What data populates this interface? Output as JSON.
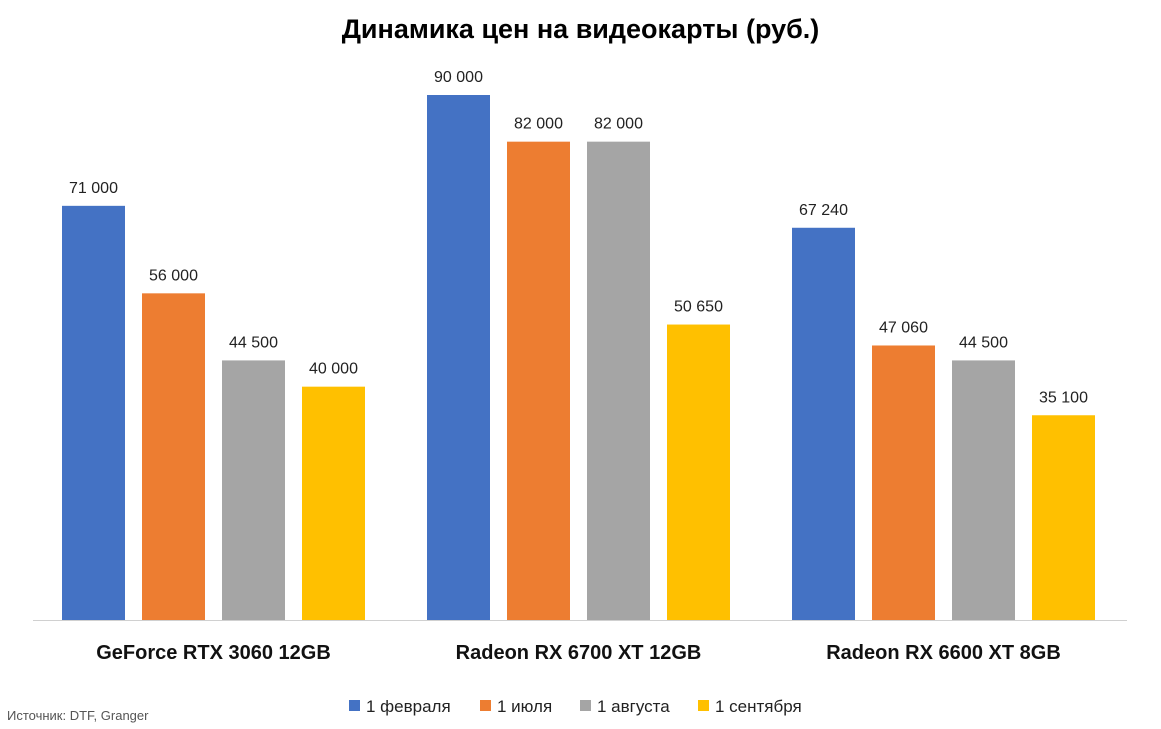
{
  "chart_data": {
    "type": "bar",
    "title": "Динамика цен на видеокарты (руб.)",
    "categories": [
      "GeForce RTX 3060 12GB",
      "Radeon RX 6700 XT 12GB",
      "Radeon RX 6600 XT 8GB"
    ],
    "series": [
      {
        "name": "1 февраля",
        "color": "#4472C4",
        "values": [
          71000,
          90000,
          67240
        ],
        "labels": [
          "71 000",
          "90 000",
          "67 240"
        ]
      },
      {
        "name": "1 июля",
        "color": "#ED7D31",
        "values": [
          56000,
          82000,
          47060
        ],
        "labels": [
          "56 000",
          "82 000",
          "47 060"
        ]
      },
      {
        "name": "1 августа",
        "color": "#A5A5A5",
        "values": [
          44500,
          82000,
          44500
        ],
        "labels": [
          "44 500",
          "82 000",
          "44 500"
        ]
      },
      {
        "name": "1 сентября",
        "color": "#FFC000",
        "values": [
          40000,
          50650,
          35100
        ],
        "labels": [
          "40 000",
          "50 650",
          "35 100"
        ]
      }
    ],
    "xlabel": "",
    "ylabel": "",
    "ylim": [
      0,
      90000
    ],
    "grid": false,
    "legend": "bottom",
    "source": "Источник: DTF, Granger"
  }
}
